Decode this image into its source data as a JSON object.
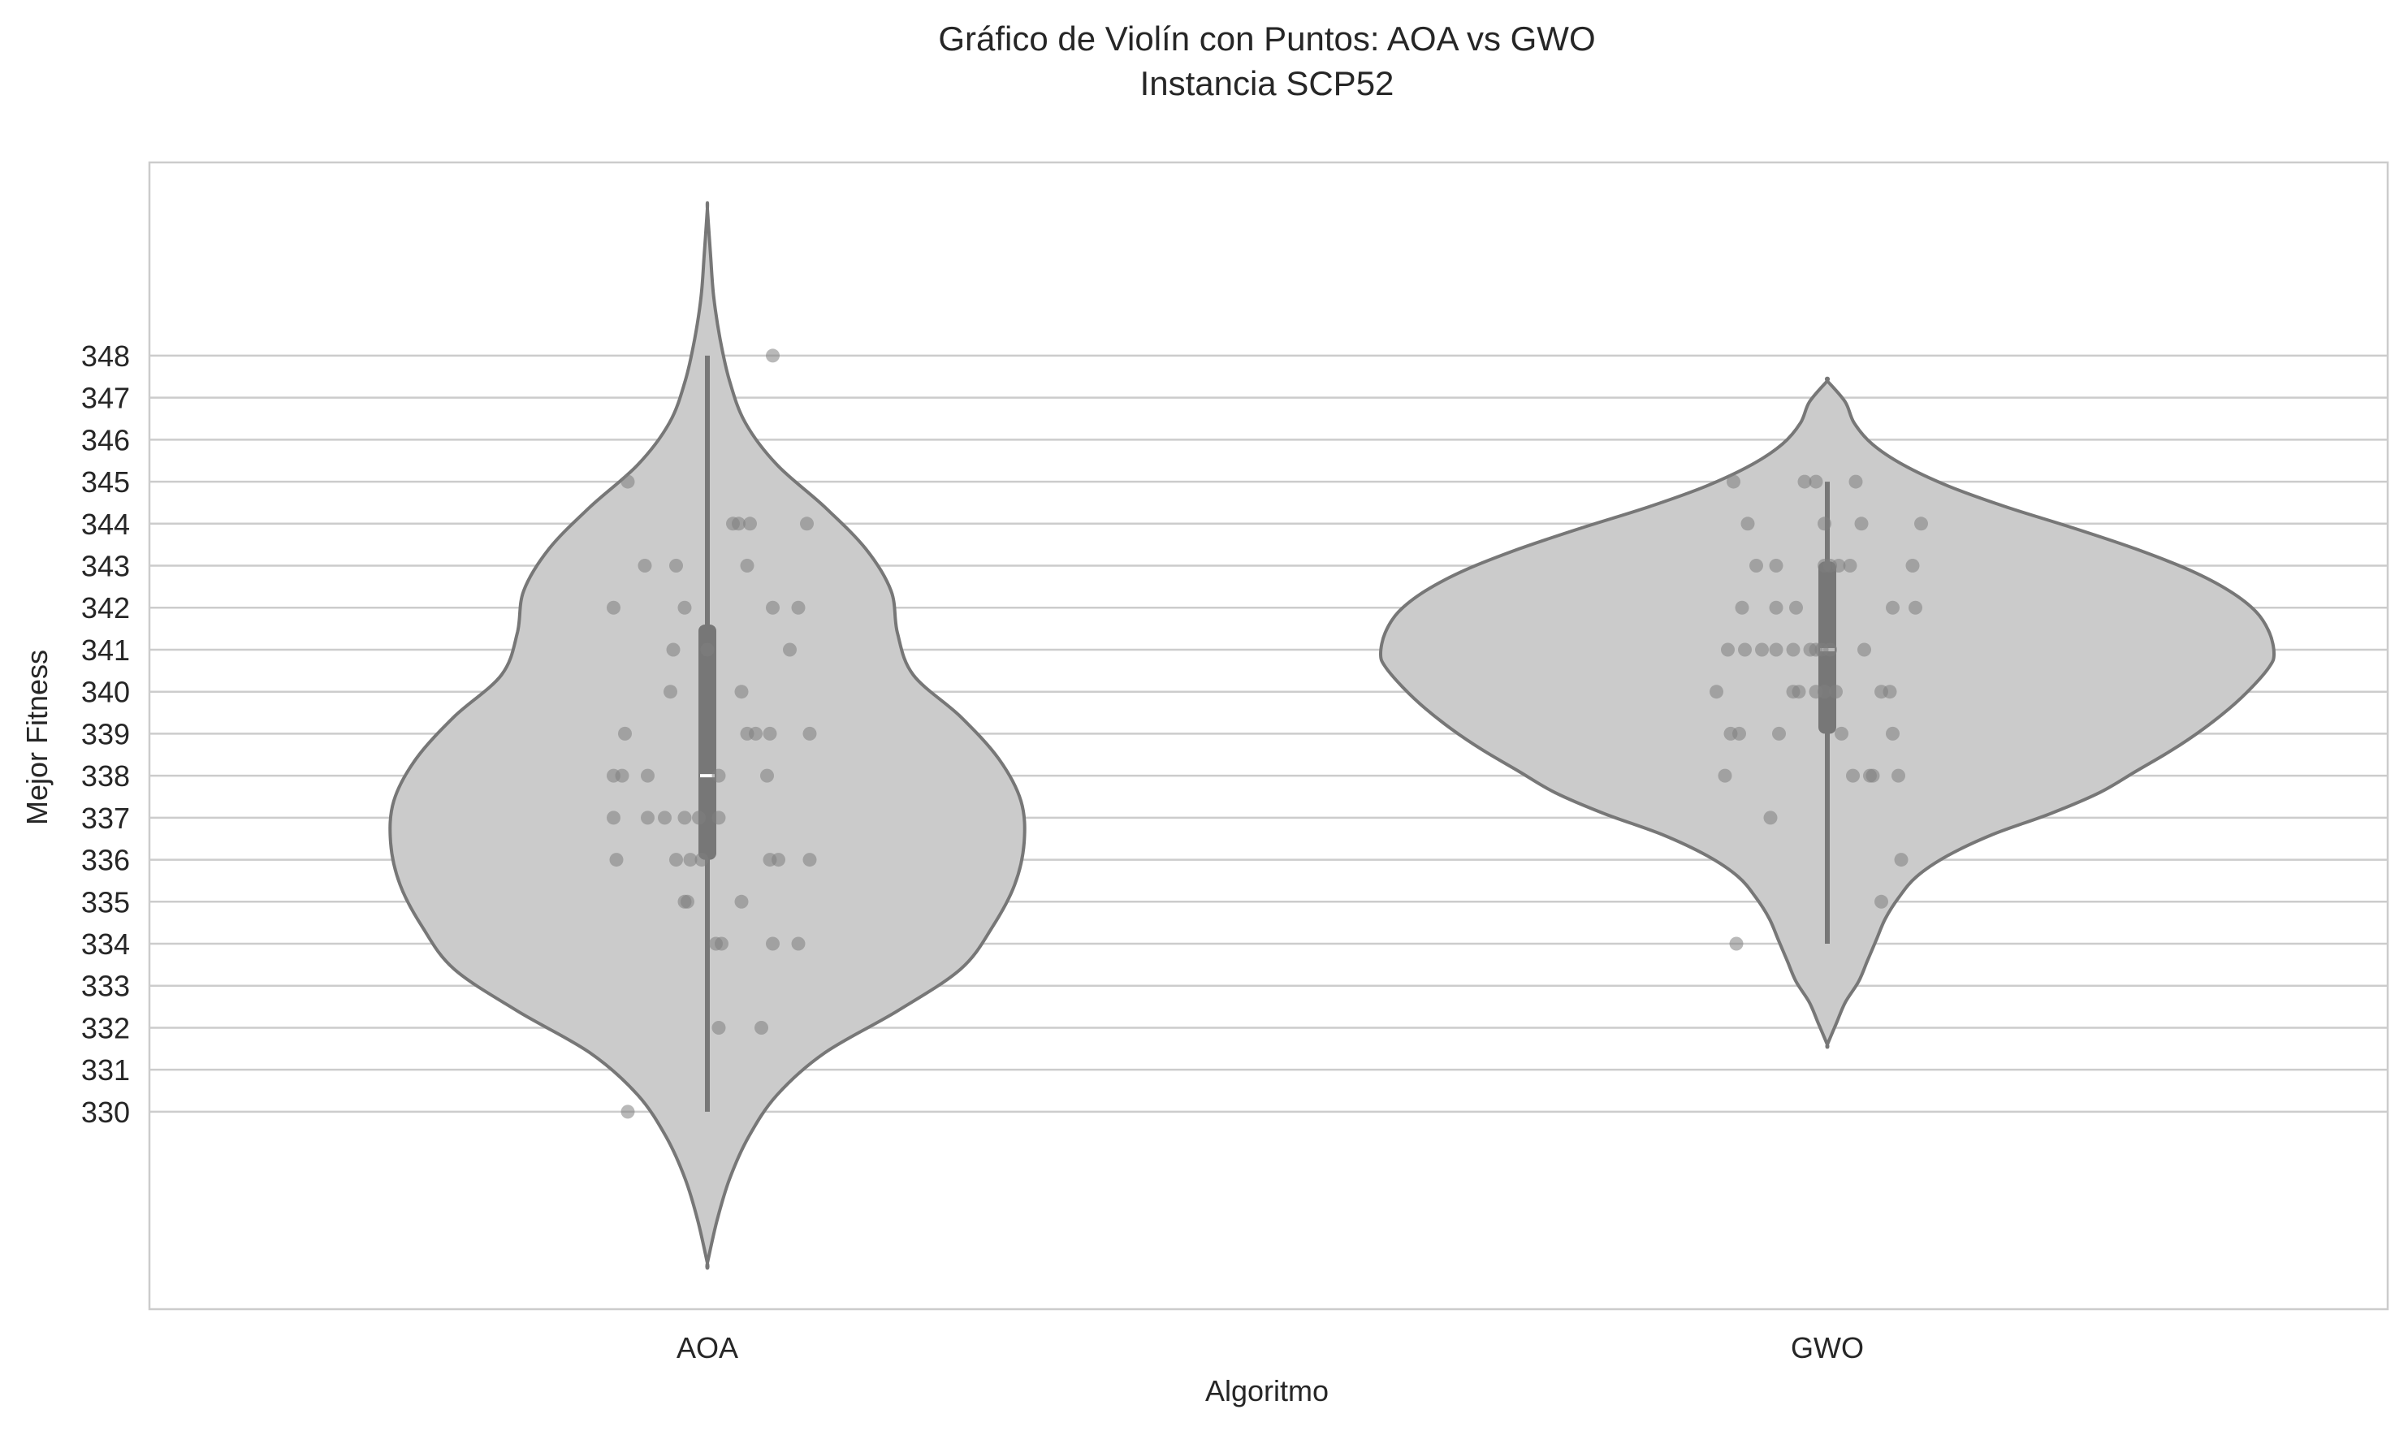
{
  "chart_data": {
    "type": "violin",
    "title": "Gráfico de Violín con Puntos: AOA vs GWO",
    "subtitle": "Instancia SCP52",
    "xlabel": "Algoritmo",
    "ylabel": "Mejor Fitness",
    "categories": [
      "AOA",
      "GWO"
    ],
    "yticks": [
      "330",
      "331",
      "332",
      "333",
      "334",
      "335",
      "336",
      "337",
      "338",
      "339",
      "340",
      "341",
      "342",
      "343",
      "344",
      "345",
      "346",
      "347",
      "348"
    ],
    "ylim": [
      325.3,
      352.6
    ],
    "grid": "horizontal",
    "colors": {
      "violin_fill": "#cbcbcb",
      "violin_edge": "#777777",
      "points": "#7f7f7f",
      "grid": "#cccccc"
    },
    "series": [
      {
        "category": "AOA",
        "violin_extent": [
          326.4,
          351.5
        ],
        "density_profile": [
          [
            326.4,
            0.0
          ],
          [
            327.4,
            0.03
          ],
          [
            328.4,
            0.07
          ],
          [
            329.4,
            0.13
          ],
          [
            330.4,
            0.22
          ],
          [
            331.4,
            0.37
          ],
          [
            332.4,
            0.6
          ],
          [
            333.4,
            0.8
          ],
          [
            334.4,
            0.9
          ],
          [
            335.4,
            0.97
          ],
          [
            336.4,
            1.0
          ],
          [
            337.4,
            0.99
          ],
          [
            338.4,
            0.92
          ],
          [
            339.4,
            0.8
          ],
          [
            340.4,
            0.65
          ],
          [
            341.4,
            0.6
          ],
          [
            342.4,
            0.58
          ],
          [
            343.4,
            0.5
          ],
          [
            344.4,
            0.37
          ],
          [
            345.4,
            0.22
          ],
          [
            346.4,
            0.12
          ],
          [
            347.4,
            0.07
          ],
          [
            348.4,
            0.04
          ],
          [
            349.4,
            0.02
          ],
          [
            350.4,
            0.01
          ],
          [
            351.5,
            0.0
          ]
        ],
        "whisker": [
          330,
          348
        ],
        "box": [
          336,
          341.6
        ],
        "median": 338,
        "points": [
          [
            -0.28,
            345
          ],
          [
            -0.33,
            342
          ],
          [
            -0.22,
            343
          ],
          [
            -0.11,
            343
          ],
          [
            -0.08,
            342
          ],
          [
            -0.12,
            341
          ],
          [
            -0.13,
            340
          ],
          [
            -0.29,
            339
          ],
          [
            -0.33,
            338
          ],
          [
            -0.3,
            338
          ],
          [
            -0.21,
            338
          ],
          [
            -0.33,
            337
          ],
          [
            -0.21,
            337
          ],
          [
            -0.15,
            337
          ],
          [
            -0.08,
            337
          ],
          [
            -0.03,
            337
          ],
          [
            -0.32,
            336
          ],
          [
            -0.11,
            336
          ],
          [
            -0.06,
            336
          ],
          [
            -0.02,
            336
          ],
          [
            -0.07,
            335
          ],
          [
            -0.08,
            335
          ],
          [
            -0.28,
            330
          ],
          [
            0.0,
            341
          ],
          [
            0.04,
            338
          ],
          [
            0.04,
            337
          ],
          [
            0.03,
            334
          ],
          [
            0.05,
            334
          ],
          [
            0.04,
            332
          ],
          [
            0.09,
            344
          ],
          [
            0.11,
            344
          ],
          [
            0.15,
            344
          ],
          [
            0.14,
            343
          ],
          [
            0.12,
            340
          ],
          [
            0.14,
            339
          ],
          [
            0.17,
            339
          ],
          [
            0.22,
            339
          ],
          [
            0.21,
            338
          ],
          [
            0.12,
            335
          ],
          [
            0.22,
            336
          ],
          [
            0.25,
            336
          ],
          [
            0.19,
            332
          ],
          [
            0.23,
            342
          ],
          [
            0.32,
            342
          ],
          [
            0.29,
            341
          ],
          [
            0.35,
            344
          ],
          [
            0.36,
            339
          ],
          [
            0.36,
            336
          ],
          [
            0.32,
            334
          ],
          [
            0.23,
            334
          ],
          [
            0.23,
            348
          ]
        ]
      },
      {
        "category": "GWO",
        "violin_extent": [
          331.6,
          347.4
        ],
        "density_profile": [
          [
            331.6,
            0.0
          ],
          [
            332.1,
            0.02
          ],
          [
            332.6,
            0.04
          ],
          [
            333.1,
            0.07
          ],
          [
            333.6,
            0.09
          ],
          [
            334.1,
            0.11
          ],
          [
            334.6,
            0.13
          ],
          [
            335.1,
            0.16
          ],
          [
            335.6,
            0.2
          ],
          [
            336.1,
            0.27
          ],
          [
            336.6,
            0.37
          ],
          [
            337.1,
            0.5
          ],
          [
            337.6,
            0.61
          ],
          [
            338.1,
            0.69
          ],
          [
            338.6,
            0.77
          ],
          [
            339.1,
            0.84
          ],
          [
            339.6,
            0.9
          ],
          [
            340.1,
            0.95
          ],
          [
            340.6,
            0.99
          ],
          [
            340.9,
            1.0
          ],
          [
            341.4,
            0.99
          ],
          [
            341.9,
            0.96
          ],
          [
            342.4,
            0.9
          ],
          [
            342.9,
            0.81
          ],
          [
            343.4,
            0.69
          ],
          [
            343.9,
            0.55
          ],
          [
            344.4,
            0.4
          ],
          [
            344.9,
            0.27
          ],
          [
            345.4,
            0.17
          ],
          [
            345.9,
            0.1
          ],
          [
            346.4,
            0.06
          ],
          [
            346.9,
            0.04
          ],
          [
            347.4,
            0.0
          ]
        ],
        "whisker": [
          334,
          345
        ],
        "box": [
          339,
          343.1
        ],
        "median": 341,
        "points": [
          [
            -0.33,
            345
          ],
          [
            -0.28,
            344
          ],
          [
            -0.25,
            343
          ],
          [
            -0.18,
            343
          ],
          [
            -0.18,
            342
          ],
          [
            -0.3,
            342
          ],
          [
            -0.35,
            341
          ],
          [
            -0.29,
            341
          ],
          [
            -0.23,
            341
          ],
          [
            -0.18,
            341
          ],
          [
            -0.12,
            341
          ],
          [
            -0.11,
            342
          ],
          [
            -0.06,
            341
          ],
          [
            -0.12,
            340
          ],
          [
            -0.04,
            341
          ],
          [
            -0.04,
            340
          ],
          [
            -0.1,
            340
          ],
          [
            -0.39,
            340
          ],
          [
            -0.34,
            339
          ],
          [
            -0.31,
            339
          ],
          [
            -0.17,
            339
          ],
          [
            -0.36,
            338
          ],
          [
            -0.2,
            337
          ],
          [
            -0.32,
            334
          ],
          [
            -0.08,
            345
          ],
          [
            -0.04,
            345
          ],
          [
            -0.01,
            344
          ],
          [
            -0.01,
            343
          ],
          [
            0.01,
            343
          ],
          [
            -0.02,
            341
          ],
          [
            0.01,
            341
          ],
          [
            -0.01,
            340
          ],
          [
            0.03,
            340
          ],
          [
            0.05,
            339
          ],
          [
            0.04,
            343
          ],
          [
            0.08,
            343
          ],
          [
            0.1,
            345
          ],
          [
            0.12,
            344
          ],
          [
            0.13,
            341
          ],
          [
            0.09,
            338
          ],
          [
            0.15,
            338
          ],
          [
            0.16,
            338
          ],
          [
            0.19,
            340
          ],
          [
            0.22,
            340
          ],
          [
            0.23,
            342
          ],
          [
            0.23,
            339
          ],
          [
            0.25,
            338
          ],
          [
            0.3,
            343
          ],
          [
            0.31,
            342
          ],
          [
            0.33,
            344
          ],
          [
            0.19,
            335
          ],
          [
            0.26,
            336
          ]
        ]
      }
    ]
  }
}
